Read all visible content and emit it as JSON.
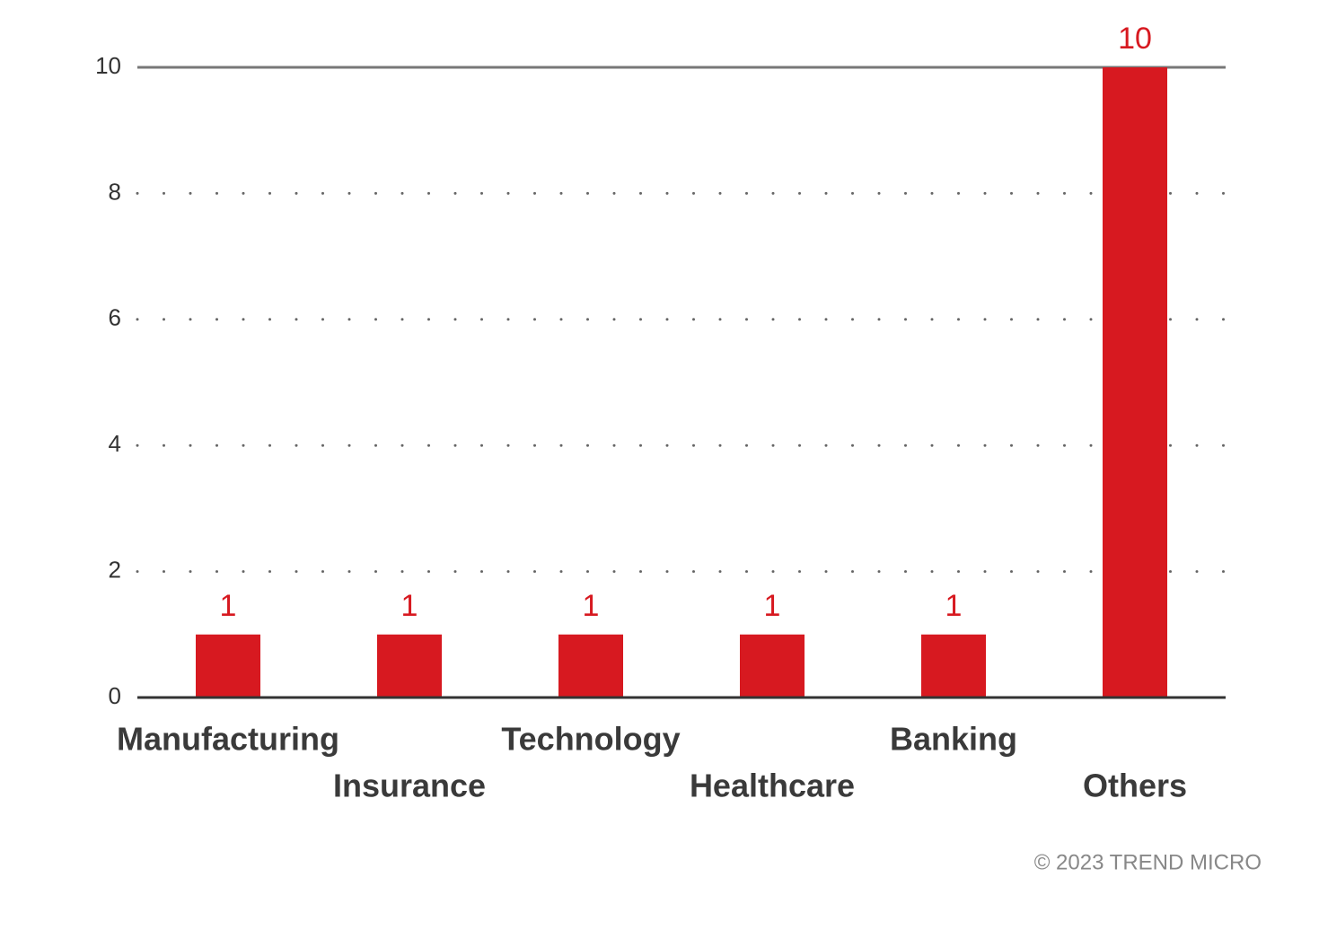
{
  "chart_data": {
    "type": "bar",
    "categories": [
      "Manufacturing",
      "Insurance",
      "Technology",
      "Healthcare",
      "Banking",
      "Others"
    ],
    "values": [
      1,
      1,
      1,
      1,
      1,
      10
    ],
    "color": "#d71920",
    "ylim": [
      0,
      10
    ],
    "yticks": [
      0,
      2,
      4,
      6,
      8,
      10
    ],
    "grid": true,
    "credit": "© 2023 TREND MICRO"
  }
}
